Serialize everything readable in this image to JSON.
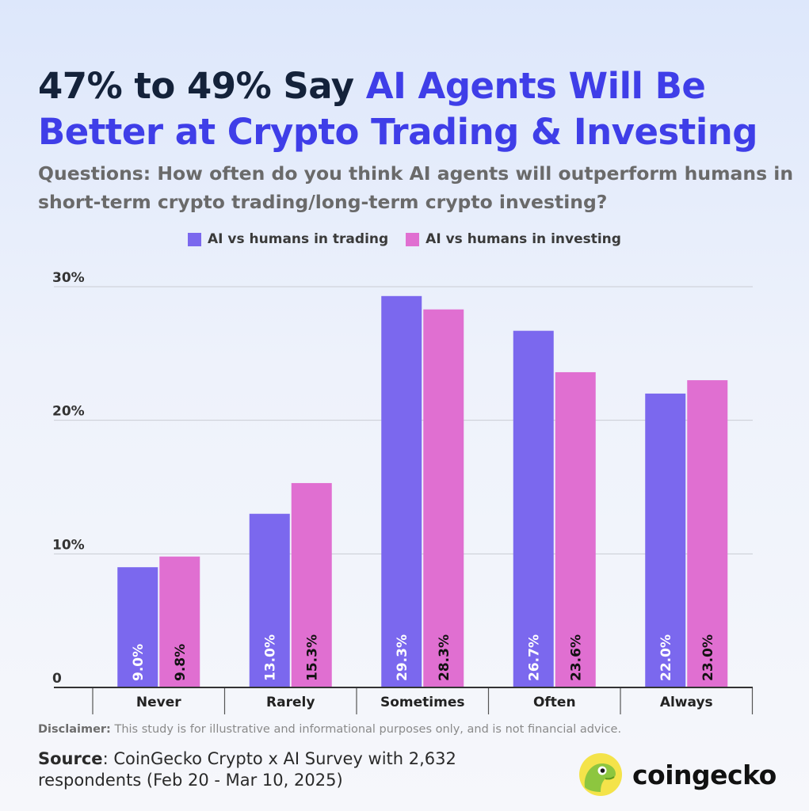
{
  "title": {
    "part1": "47% to 49% Say ",
    "part2": "AI Agents Will Be Better at Crypto Trading & Investing"
  },
  "subtitle": "Questions: How often do you think AI agents will outperform humans in short-term crypto trading/long-term crypto investing?",
  "colors": {
    "trading": "#7b68ee",
    "investing": "#e06fd1",
    "title_accent": "#3f3ee8"
  },
  "chart_data": {
    "type": "bar",
    "categories": [
      "Never",
      "Rarely",
      "Sometimes",
      "Often",
      "Always"
    ],
    "series": [
      {
        "name": "AI vs humans in trading",
        "values": [
          9.0,
          13.0,
          29.3,
          26.7,
          22.0
        ],
        "labels": [
          "9.0%",
          "13.0%",
          "29.3%",
          "26.7%",
          "22.0%"
        ]
      },
      {
        "name": "AI vs humans in investing",
        "values": [
          9.8,
          15.3,
          28.3,
          23.6,
          23.0
        ],
        "labels": [
          "9.8%",
          "15.3%",
          "28.3%",
          "23.6%",
          "23.0%"
        ]
      }
    ],
    "ylim": [
      0,
      30
    ],
    "yticks": [
      0,
      10,
      20,
      30
    ],
    "ytick_labels": [
      "0",
      "10%",
      "20%",
      "30%"
    ],
    "grid": true,
    "legend_position": "top-center"
  },
  "footer": {
    "disclaimer_label": "Disclaimer:",
    "disclaimer_text": " This study is for illustrative and informational purposes only, and is not financial advice.",
    "source_label": "Source",
    "source_text": ": CoinGecko Crypto x AI Survey with 2,632 respondents (Feb 20 - Mar 10, 2025)"
  },
  "brand": {
    "name": "coingecko",
    "logo_icon": "gecko-logo-icon"
  }
}
